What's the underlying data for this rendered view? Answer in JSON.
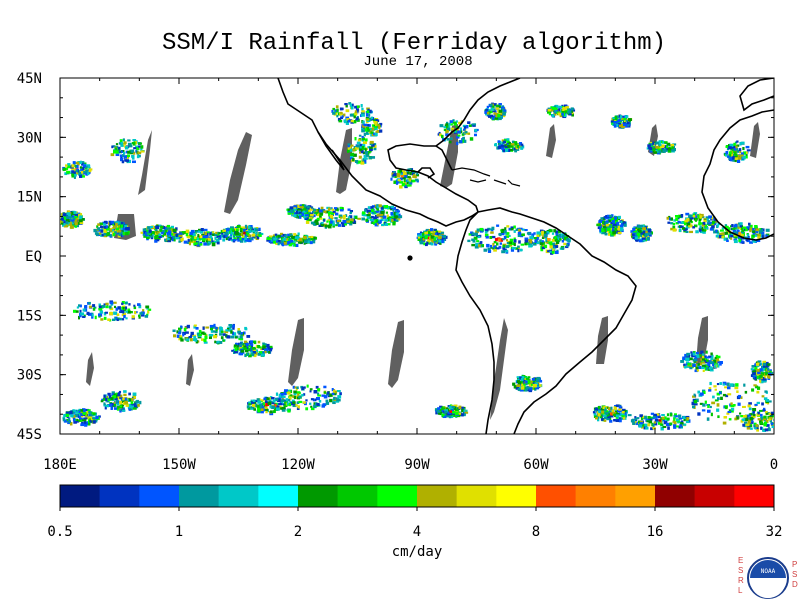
{
  "title": "SSM/I Rainfall (Ferriday algorithm)",
  "subtitle": "June 17, 2008",
  "map": {
    "lat_labels": [
      "45N",
      "30N",
      "15N",
      "EQ",
      "15S",
      "30S",
      "45S"
    ],
    "lon_labels": [
      "180E",
      "150W",
      "120W",
      "90W",
      "60W",
      "30W",
      "0"
    ],
    "lat_values": [
      45,
      30,
      15,
      0,
      -15,
      -30,
      -45
    ],
    "lon_values": [
      -180,
      -150,
      -120,
      -90,
      -60,
      -30,
      0
    ],
    "lon_range": [
      -180,
      0
    ],
    "lat_range": [
      -45,
      45
    ],
    "land_no_data_color": "#ffffff",
    "missing_swath_color": "#606060",
    "coastline_color": "#000000"
  },
  "colorbar": {
    "unit": "cm/day",
    "tick_labels": [
      "0.5",
      "1",
      "2",
      "4",
      "8",
      "16",
      "32"
    ],
    "colors": [
      "#001a80",
      "#0033c0",
      "#0055ff",
      "#00999f",
      "#00c8c8",
      "#00ffff",
      "#009900",
      "#00c800",
      "#00ff00",
      "#b0b000",
      "#e0e000",
      "#ffff00",
      "#ff5000",
      "#ff8000",
      "#ffa000",
      "#900000",
      "#c80000",
      "#ff0000"
    ]
  },
  "logo": {
    "left_letters": [
      "E",
      "S",
      "R",
      "L"
    ],
    "right_letters": [
      "P",
      "S",
      "D"
    ],
    "emblem_text": "NOAA"
  }
}
